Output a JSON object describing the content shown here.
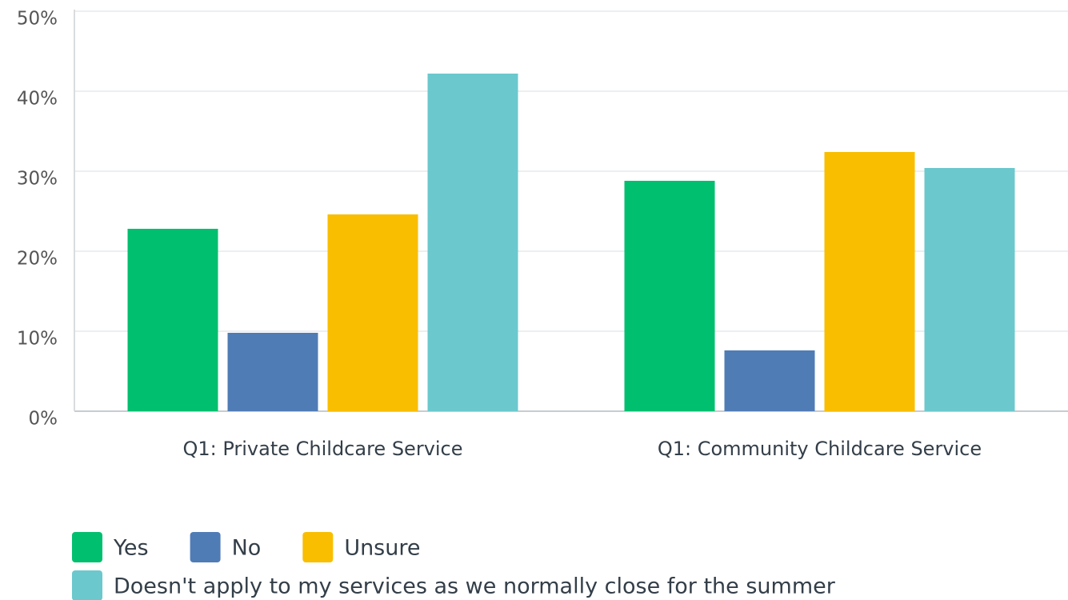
{
  "chart_data": {
    "type": "bar",
    "categories": [
      "Q1: Private Childcare Service",
      "Q1: Community Childcare Service"
    ],
    "series": [
      {
        "name": "Yes",
        "color": "#00bf6f",
        "values": [
          22.8,
          28.8
        ]
      },
      {
        "name": "No",
        "color": "#507cb6",
        "values": [
          9.8,
          7.6
        ]
      },
      {
        "name": "Unsure",
        "color": "#f9be00",
        "values": [
          24.6,
          32.4
        ]
      },
      {
        "name": "Doesn't apply to my services as we normally close for the summer",
        "color": "#6bc8cd",
        "values": [
          42.2,
          30.4
        ]
      }
    ],
    "ylim": [
      0,
      50
    ],
    "yticks": [
      {
        "value": 0,
        "label": "0%"
      },
      {
        "value": 10,
        "label": "10%"
      },
      {
        "value": 20,
        "label": "20%"
      },
      {
        "value": 30,
        "label": "30%"
      },
      {
        "value": 40,
        "label": "40%"
      },
      {
        "value": 50,
        "label": "50%"
      }
    ],
    "grid": true,
    "legend": "bottom"
  }
}
